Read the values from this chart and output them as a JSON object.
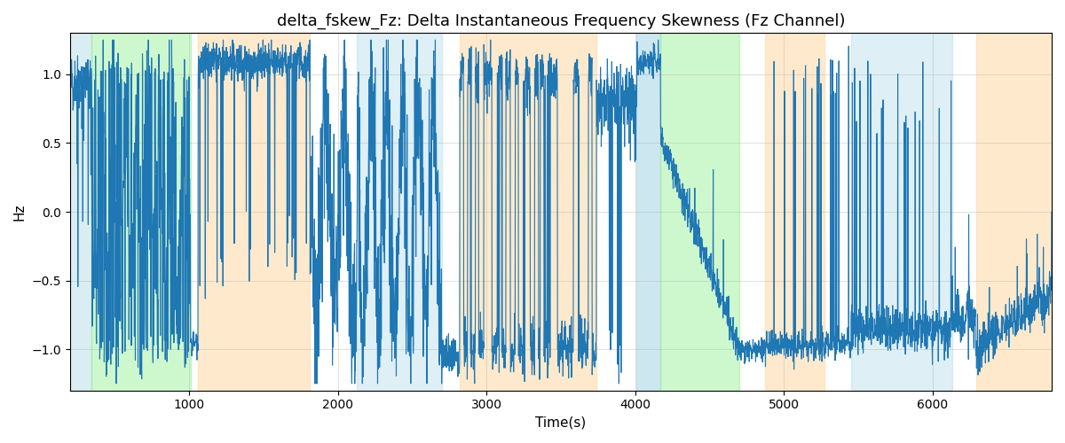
{
  "title": "delta_fskew_Fz: Delta Instantaneous Frequency Skewness (Fz Channel)",
  "xlabel": "Time(s)",
  "ylabel": "Hz",
  "xlim": [
    200,
    6800
  ],
  "ylim": [
    -1.3,
    1.3
  ],
  "line_color": "#1f77b4",
  "line_width": 0.8,
  "grid_color": "#aaaaaa",
  "grid_alpha": 0.5,
  "yticks": [
    -1.0,
    -0.5,
    0.0,
    0.5,
    1.0
  ],
  "xticks": [
    1000,
    2000,
    3000,
    4000,
    5000,
    6000
  ],
  "title_fontsize": 13,
  "label_fontsize": 11,
  "regions": [
    {
      "xstart": 200,
      "xend": 345,
      "color": "#add8e6",
      "alpha": 0.45
    },
    {
      "xstart": 345,
      "xend": 1010,
      "color": "#90ee90",
      "alpha": 0.45
    },
    {
      "xstart": 1060,
      "xend": 1810,
      "color": "#ffd59a",
      "alpha": 0.5
    },
    {
      "xstart": 2130,
      "xend": 2700,
      "color": "#add8e6",
      "alpha": 0.4
    },
    {
      "xstart": 2820,
      "xend": 3740,
      "color": "#ffd59a",
      "alpha": 0.5
    },
    {
      "xstart": 4010,
      "xend": 4170,
      "color": "#add8e6",
      "alpha": 0.6
    },
    {
      "xstart": 4170,
      "xend": 4700,
      "color": "#90ee90",
      "alpha": 0.45
    },
    {
      "xstart": 4870,
      "xend": 5270,
      "color": "#ffd59a",
      "alpha": 0.5
    },
    {
      "xstart": 5450,
      "xend": 6130,
      "color": "#add8e6",
      "alpha": 0.4
    },
    {
      "xstart": 6290,
      "xend": 6800,
      "color": "#ffd59a",
      "alpha": 0.5
    }
  ],
  "seed": 42,
  "n_points": 4000
}
